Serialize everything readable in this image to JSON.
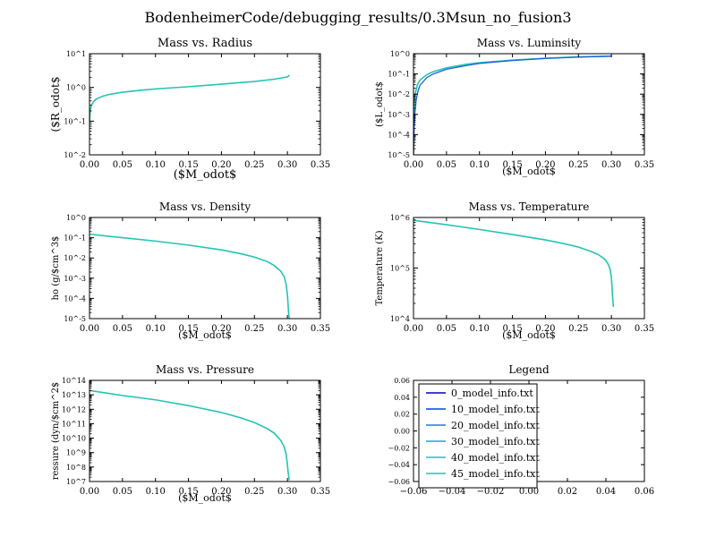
{
  "figure_title": "BodenheimerCode/debugging_results/0.3Msun_no_fusion3",
  "chart_data": [
    {
      "type": "line",
      "title": "Mass vs. Radius",
      "xlabel": "($M_odot$",
      "ylabel": "($R_odot$",
      "xlim": [
        0,
        0.35
      ],
      "yscale": "log",
      "ylim_exp": [
        -2,
        1
      ],
      "x_ticks": [
        "0.00",
        "0.05",
        "0.10",
        "0.15",
        "0.20",
        "0.25",
        "0.30",
        "0.35"
      ],
      "y_ticks": [
        "10^-2",
        "10^-1",
        "10^0",
        "10^1"
      ],
      "series": [
        {
          "x": [
            0.0,
            0.001,
            0.003,
            0.006,
            0.01,
            0.02,
            0.03,
            0.05,
            0.08,
            0.1,
            0.15,
            0.2,
            0.25,
            0.28,
            0.3,
            0.303
          ],
          "y": [
            0.09,
            0.2,
            0.3,
            0.38,
            0.45,
            0.55,
            0.62,
            0.72,
            0.83,
            0.9,
            1.05,
            1.25,
            1.5,
            1.75,
            2.05,
            2.3
          ]
        }
      ]
    },
    {
      "type": "line",
      "title": "Mass vs. Luminsity",
      "xlabel": "($M_odot$",
      "ylabel": "($L_odot$",
      "xlim": [
        0,
        0.35
      ],
      "yscale": "log",
      "ylim_exp": [
        -5,
        0
      ],
      "x_ticks": [
        "0.00",
        "0.05",
        "0.10",
        "0.15",
        "0.20",
        "0.25",
        "0.30",
        "0.35"
      ],
      "y_ticks": [
        "10^-5",
        "10^-4",
        "10^-3",
        "10^-2",
        "10^-1",
        "10^0"
      ],
      "series": [
        {
          "x": [
            0.0,
            0.001,
            0.003,
            0.006,
            0.01,
            0.02,
            0.03,
            0.05,
            0.08,
            0.1,
            0.15,
            0.2,
            0.25,
            0.3
          ],
          "y": [
            1e-05,
            0.003,
            0.012,
            0.03,
            0.05,
            0.09,
            0.13,
            0.2,
            0.3,
            0.36,
            0.48,
            0.6,
            0.7,
            0.76
          ]
        },
        {
          "x": [
            0.0,
            0.001,
            0.002,
            0.004,
            0.007,
            0.01,
            0.02,
            0.03,
            0.05,
            0.08,
            0.1,
            0.15,
            0.2,
            0.25,
            0.3
          ],
          "y": [
            1e-05,
            0.0002,
            0.001,
            0.005,
            0.015,
            0.028,
            0.065,
            0.1,
            0.17,
            0.26,
            0.33,
            0.46,
            0.58,
            0.68,
            0.75
          ]
        }
      ]
    },
    {
      "type": "line",
      "title": "Mass vs. Density",
      "xlabel": "($M_odot$",
      "ylabel": "ho (g/$cm^3$",
      "xlim": [
        0,
        0.35
      ],
      "yscale": "log",
      "ylim_exp": [
        -5,
        0
      ],
      "x_ticks": [
        "0.00",
        "0.05",
        "0.10",
        "0.15",
        "0.20",
        "0.25",
        "0.30",
        "0.35"
      ],
      "y_ticks": [
        "10^-5",
        "10^-4",
        "10^-3",
        "10^-2",
        "10^-1",
        "10^0"
      ],
      "series": [
        {
          "x": [
            0.0,
            0.05,
            0.1,
            0.15,
            0.2,
            0.23,
            0.25,
            0.27,
            0.28,
            0.29,
            0.295,
            0.298,
            0.3,
            0.301,
            0.302,
            0.303
          ],
          "y": [
            0.15,
            0.1,
            0.068,
            0.043,
            0.025,
            0.016,
            0.011,
            0.0065,
            0.0042,
            0.0022,
            0.0012,
            0.0005,
            0.00015,
            5e-05,
            1.5e-05,
            1e-05
          ]
        }
      ]
    },
    {
      "type": "line",
      "title": "Mass vs. Temperature",
      "xlabel": "($M_odot$",
      "ylabel": "Temperature (K)",
      "xlim": [
        0,
        0.35
      ],
      "yscale": "log",
      "ylim_exp": [
        4,
        6
      ],
      "x_ticks": [
        "0.00",
        "0.05",
        "0.10",
        "0.15",
        "0.20",
        "0.25",
        "0.30",
        "0.35"
      ],
      "y_ticks": [
        "10^4",
        "10^5",
        "10^6"
      ],
      "series": [
        {
          "x": [
            0.0,
            0.05,
            0.1,
            0.15,
            0.2,
            0.23,
            0.25,
            0.27,
            0.28,
            0.29,
            0.295,
            0.298,
            0.3,
            0.301,
            0.302,
            0.303
          ],
          "y": [
            880000,
            720000,
            580000,
            460000,
            360000,
            300000,
            260000,
            210000,
            185000,
            150000,
            120000,
            95000,
            65000,
            40000,
            25000,
            17000
          ]
        }
      ]
    },
    {
      "type": "line",
      "title": "Mass vs. Pressure",
      "xlabel": "($M_odot$",
      "ylabel": "ressure (dyn/$cm^2$",
      "xlim": [
        0,
        0.35
      ],
      "yscale": "log",
      "ylim_exp": [
        7,
        14
      ],
      "x_ticks": [
        "0.00",
        "0.05",
        "0.10",
        "0.15",
        "0.20",
        "0.25",
        "0.30",
        "0.35"
      ],
      "y_ticks": [
        "10^7",
        "10^8",
        "10^9",
        "10^10",
        "10^11",
        "10^12",
        "10^13",
        "10^14"
      ],
      "series": [
        {
          "x": [
            0.0,
            0.05,
            0.1,
            0.15,
            0.2,
            0.23,
            0.25,
            0.27,
            0.28,
            0.29,
            0.295,
            0.298,
            0.3,
            0.301,
            0.302,
            0.303
          ],
          "y": [
            20000000000000.0,
            9000000000000.0,
            4500000000000.0,
            1800000000000.0,
            600000000000.0,
            250000000000.0,
            120000000000.0,
            45000000000.0,
            22000000000.0,
            7000000000.0,
            2500000000.0,
            800000000.0,
            150000000.0,
            50000000.0,
            20000000.0,
            12000000.0
          ]
        }
      ]
    },
    {
      "type": "line",
      "title": "Legend",
      "xlim": [
        -0.06,
        0.06
      ],
      "ylim": [
        -0.06,
        0.06
      ],
      "x_ticks": [
        "−0.06",
        "−0.04",
        "−0.02",
        "0.00",
        "0.02",
        "0.04",
        "0.06"
      ],
      "y_ticks": [
        "−0.06",
        "−0.04",
        "−0.02",
        "0.00",
        "0.02",
        "0.04",
        "0.06"
      ],
      "legend": [
        {
          "label": "0_model_info.txt",
          "color": "#0000cc"
        },
        {
          "label": "10_model_info.txt",
          "color": "#0044ee"
        },
        {
          "label": "20_model_info.txt",
          "color": "#1f77e8"
        },
        {
          "label": "30_model_info.txt",
          "color": "#1aa3d9"
        },
        {
          "label": "40_model_info.txt",
          "color": "#20bfc9"
        },
        {
          "label": "45_model_info.txt",
          "color": "#22c4b4"
        }
      ],
      "legend_location": "upper-left"
    }
  ],
  "colors": {
    "curve_primary": "#22c4b4",
    "curve_secondary": "#1f5fd8"
  }
}
